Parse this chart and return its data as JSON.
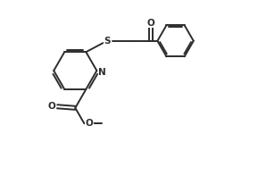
{
  "bg_color": "#ffffff",
  "line_color": "#2c2c2c",
  "line_width": 1.4,
  "figsize": [
    2.89,
    1.97
  ],
  "dpi": 100,
  "atoms": {
    "N_label": "N",
    "S_label": "S",
    "O_label": "O",
    "O2_label": "O",
    "O3_label": "O"
  },
  "font_size": 7.5
}
